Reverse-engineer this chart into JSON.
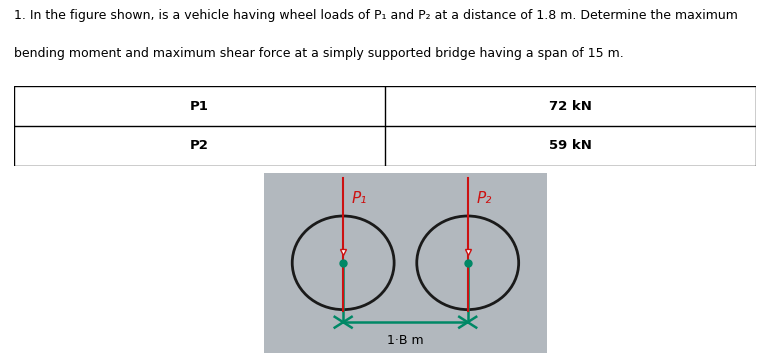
{
  "title_line1": "1. In the figure shown, is a vehicle having wheel loads of P₁ and P₂ at a distance of 1.8 m. Determine the maximum",
  "title_line2": "bending moment and maximum shear force at a simply supported bridge having a span of 15 m.",
  "table_col1": [
    "P1",
    "P2"
  ],
  "table_col2": [
    "72 kN",
    "59 kN"
  ],
  "bg_color": "#b2b8be",
  "wheel_color": "#1a1a1a",
  "arrow_color": "#cc1111",
  "green_color": "#008866",
  "label_P1": "P₁",
  "label_P2": "P₂",
  "dimension_label": "1·B m",
  "figure_bg": "#ffffff",
  "text_color": "#000000",
  "font_size_body": 9.0,
  "font_size_table": 9.5
}
